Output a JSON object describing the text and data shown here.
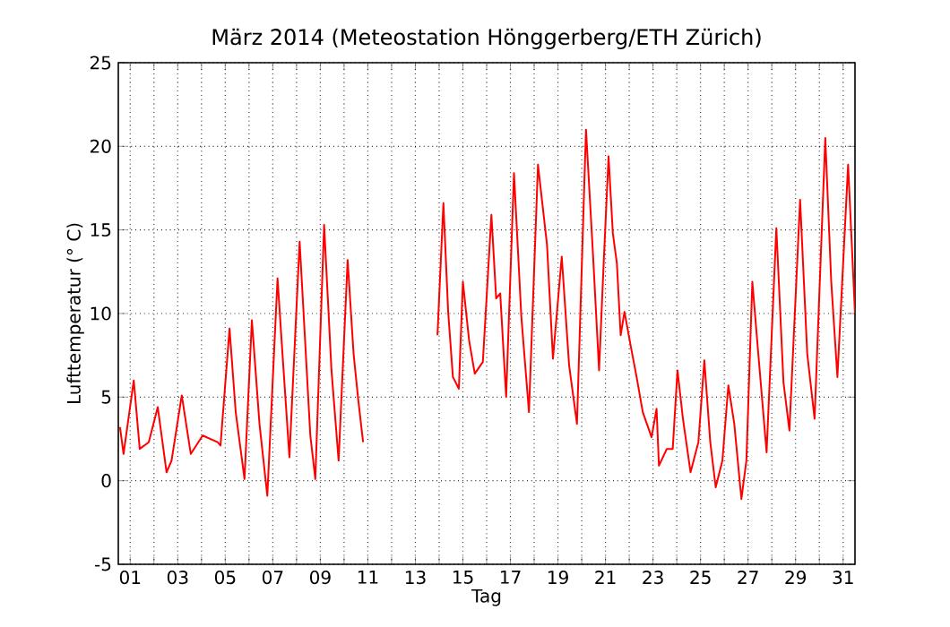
{
  "chart_data": {
    "type": "line",
    "title": "März 2014  (Meteostation Hönggerberg/ETH Zürich)",
    "xlabel": "Tag",
    "ylabel": "Lufttemperatur (° C)",
    "x": [
      0.57,
      0.72,
      1.15,
      1.4,
      1.78,
      2.16,
      2.53,
      2.74,
      3.17,
      3.55,
      4.05,
      4.68,
      4.8,
      5.18,
      5.44,
      5.81,
      6.12,
      6.44,
      6.77,
      7.2,
      7.37,
      7.7,
      8.13,
      8.58,
      8.79,
      9.16,
      9.47,
      9.77,
      10.15,
      10.4,
      10.6,
      10.8,
      12.4,
      13.93,
      14.18,
      14.38,
      14.58,
      14.83,
      15.0,
      15.26,
      15.5,
      15.84,
      16.2,
      16.4,
      16.57,
      16.82,
      17.15,
      17.46,
      17.78,
      18.16,
      18.54,
      18.79,
      19.16,
      19.47,
      19.8,
      20.18,
      20.48,
      20.73,
      20.93,
      21.13,
      21.31,
      21.48,
      21.64,
      21.8,
      22.07,
      22.31,
      22.57,
      22.94,
      23.15,
      23.25,
      23.58,
      23.83,
      24.03,
      24.26,
      24.58,
      24.91,
      25.16,
      25.41,
      25.64,
      25.92,
      26.17,
      26.42,
      26.72,
      26.93,
      27.18,
      27.43,
      27.78,
      28.19,
      28.49,
      28.74,
      29.19,
      29.49,
      29.8,
      30.25,
      30.5,
      30.76,
      31.21,
      31.5
    ],
    "series": [
      {
        "color": "#ff0000",
        "values": [
          3.2,
          1.6,
          6.0,
          1.9,
          2.3,
          4.4,
          0.5,
          1.2,
          5.1,
          1.6,
          2.7,
          2.3,
          2.1,
          9.1,
          4.1,
          0.1,
          9.6,
          3.4,
          -0.9,
          12.1,
          8.4,
          1.4,
          14.3,
          2.7,
          0.1,
          15.3,
          6.6,
          1.2,
          13.2,
          7.6,
          4.8,
          2.3,
          null,
          8.7,
          16.6,
          10.1,
          6.2,
          5.5,
          11.9,
          8.4,
          6.4,
          7.1,
          15.9,
          10.9,
          11.2,
          5.0,
          18.4,
          9.8,
          4.1,
          18.9,
          14.1,
          7.3,
          13.4,
          6.9,
          3.4,
          21.0,
          13.4,
          6.6,
          13.2,
          19.4,
          14.8,
          13.0,
          8.7,
          10.1,
          8.0,
          6.2,
          4.1,
          2.6,
          4.3,
          0.9,
          1.9,
          1.9,
          6.6,
          3.7,
          0.5,
          2.3,
          7.2,
          2.3,
          -0.4,
          1.2,
          5.7,
          3.4,
          -1.1,
          1.2,
          11.9,
          7.6,
          1.7,
          15.1,
          5.9,
          3.0,
          16.8,
          7.6,
          3.7,
          20.5,
          11.9,
          6.2,
          18.9,
          10.0
        ]
      }
    ],
    "xlim": [
      0.5,
      31.5
    ],
    "xticks": [
      {
        "value": 1,
        "label": "01"
      },
      {
        "value": 2,
        "label": null
      },
      {
        "value": 3,
        "label": "03"
      },
      {
        "value": 4,
        "label": null
      },
      {
        "value": 5,
        "label": "05"
      },
      {
        "value": 6,
        "label": null
      },
      {
        "value": 7,
        "label": "07"
      },
      {
        "value": 8,
        "label": null
      },
      {
        "value": 9,
        "label": "09"
      },
      {
        "value": 10,
        "label": null
      },
      {
        "value": 11,
        "label": "11"
      },
      {
        "value": 12,
        "label": null
      },
      {
        "value": 13,
        "label": "13"
      },
      {
        "value": 14,
        "label": null
      },
      {
        "value": 15,
        "label": "15"
      },
      {
        "value": 16,
        "label": null
      },
      {
        "value": 17,
        "label": "17"
      },
      {
        "value": 18,
        "label": null
      },
      {
        "value": 19,
        "label": "19"
      },
      {
        "value": 20,
        "label": null
      },
      {
        "value": 21,
        "label": "21"
      },
      {
        "value": 22,
        "label": null
      },
      {
        "value": 23,
        "label": "23"
      },
      {
        "value": 24,
        "label": null
      },
      {
        "value": 25,
        "label": "25"
      },
      {
        "value": 26,
        "label": null
      },
      {
        "value": 27,
        "label": "27"
      },
      {
        "value": 28,
        "label": null
      },
      {
        "value": 29,
        "label": "29"
      },
      {
        "value": 30,
        "label": null
      },
      {
        "value": 31,
        "label": "31"
      }
    ],
    "ylim": [
      -5,
      25
    ],
    "yticks": [
      -5,
      0,
      5,
      10,
      15,
      20,
      25
    ],
    "grid": true,
    "marker": "none",
    "line_style": "solid"
  }
}
